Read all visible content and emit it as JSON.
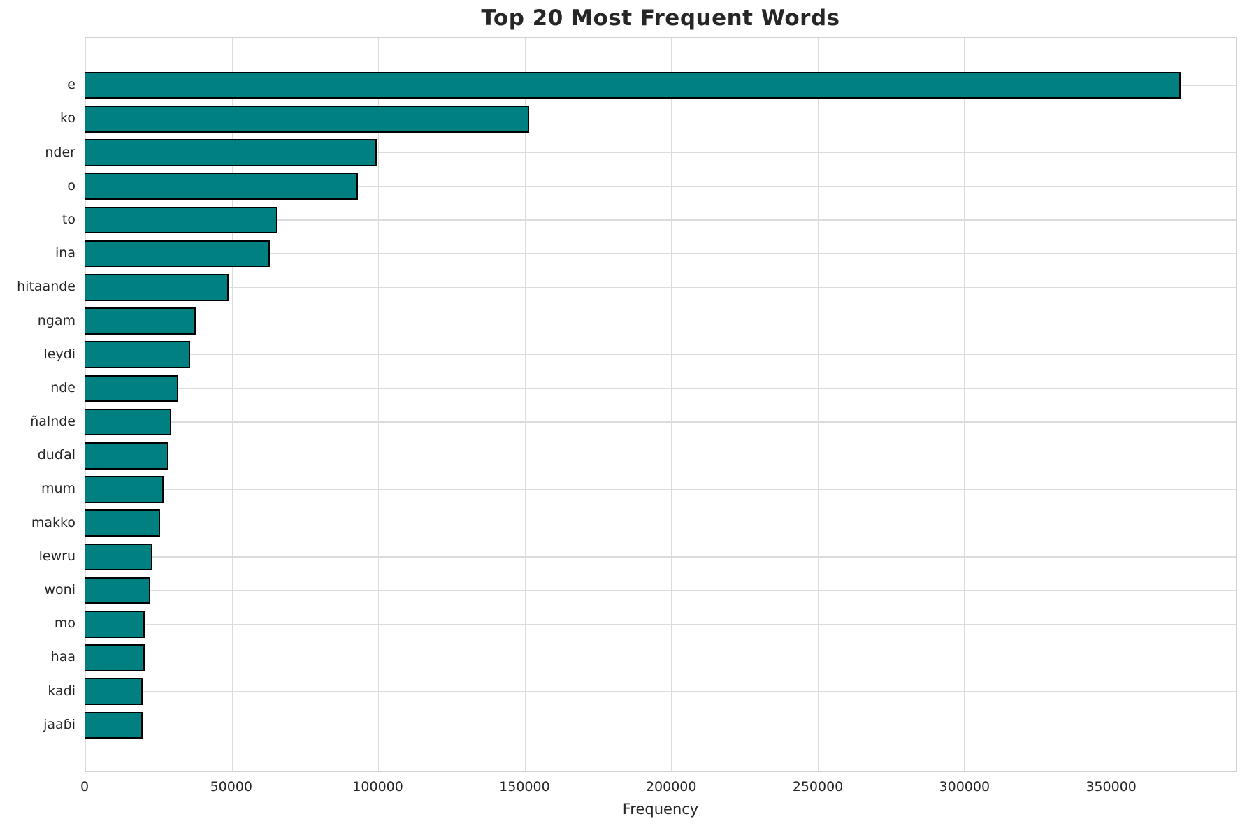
{
  "chart_data": {
    "type": "bar",
    "orientation": "horizontal",
    "title": "Top 20 Most Frequent Words",
    "xlabel": "Frequency",
    "ylabel": "",
    "categories": [
      "e",
      "ko",
      "nder",
      "o",
      "to",
      "ina",
      "hitaande",
      "ngam",
      "leydi",
      "nde",
      "ñalnde",
      "duɗal",
      "mum",
      "makko",
      "lewru",
      "woni",
      "mo",
      "haa",
      "kadi",
      "jaaɓi"
    ],
    "values": [
      374000,
      151500,
      99500,
      93000,
      65600,
      63000,
      48900,
      37700,
      35700,
      31800,
      29400,
      28400,
      26800,
      25600,
      23000,
      22200,
      20400,
      20200,
      19600,
      19500
    ],
    "x_ticks": [
      0,
      50000,
      100000,
      150000,
      200000,
      250000,
      300000,
      350000
    ],
    "x_tick_labels": [
      "0",
      "50000",
      "100000",
      "150000",
      "200000",
      "250000",
      "300000",
      "350000"
    ],
    "xlim": [
      0,
      392750
    ],
    "grid": true,
    "legend": "none",
    "bar_color": "#008080",
    "bar_edge_color": "#000000",
    "grid_color": "#dcdcdc",
    "text_color": "#262626",
    "background_color": "#ffffff"
  }
}
